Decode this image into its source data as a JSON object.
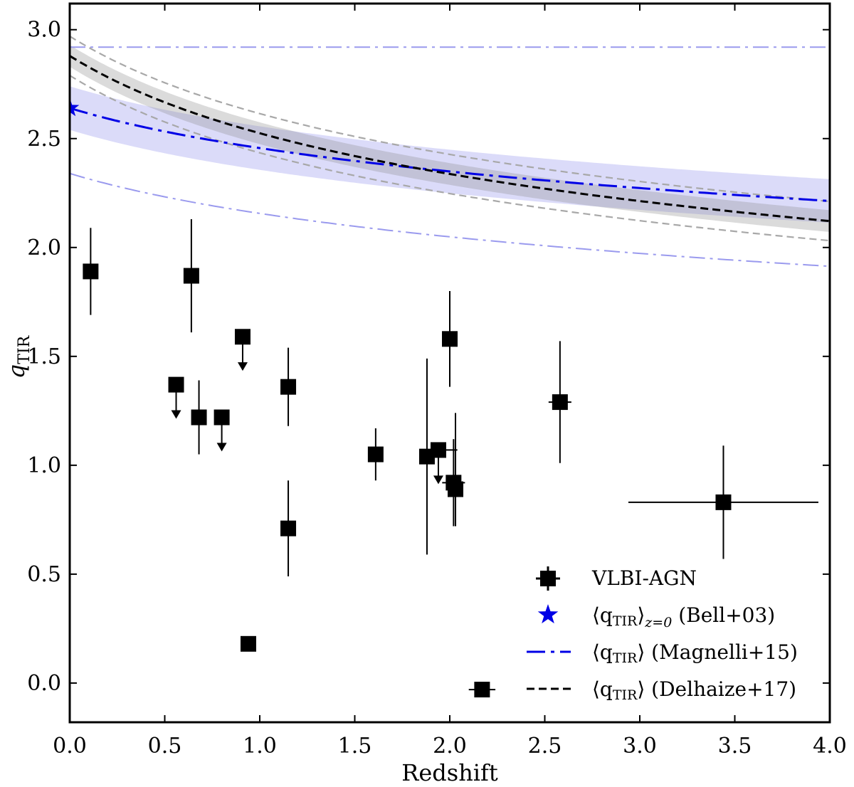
{
  "chart_data": {
    "type": "scatter",
    "xlabel": "Redshift",
    "ylabel_main": "q",
    "ylabel_sub": "TIR",
    "xlim": [
      0.0,
      4.0
    ],
    "ylim": [
      -0.18,
      3.12
    ],
    "xticks": [
      0.0,
      0.5,
      1.0,
      1.5,
      2.0,
      2.5,
      3.0,
      3.5,
      4.0
    ],
    "xtick_labels": [
      "0.0",
      "0.5",
      "1.0",
      "1.5",
      "2.0",
      "2.5",
      "3.0",
      "3.5",
      "4.0"
    ],
    "yticks": [
      0.0,
      0.5,
      1.0,
      1.5,
      2.0,
      2.5,
      3.0
    ],
    "ytick_labels": [
      "0.0",
      "0.5",
      "1.0",
      "1.5",
      "2.0",
      "2.5",
      "3.0"
    ],
    "colors": {
      "magnelli": "#0000e6",
      "magnelli_band": "#9999ee",
      "magnelli_bounds": "#9a9aee",
      "delhaize": "#000000",
      "delhaize_band": "#888888",
      "delhaize_bounds": "#a8a8a8",
      "points": "#000000"
    },
    "models": {
      "bell_z0": 2.64,
      "magnelli": {
        "q0": 2.64,
        "slope": -0.61,
        "band": 0.1,
        "upper_const": 2.92,
        "lower_offset": -0.3
      },
      "delhaize": {
        "q0": 2.88,
        "slope": -0.19,
        "band": 0.05,
        "outer_offset": 0.09
      }
    },
    "points": [
      {
        "x": 0.11,
        "y": 1.89,
        "xerr": 0.0,
        "yerr_lo": 0.2,
        "yerr_hi": 0.2,
        "upper_limit": false
      },
      {
        "x": 0.56,
        "y": 1.37,
        "xerr": 0.0,
        "yerr_lo": 0.0,
        "yerr_hi": 0.0,
        "upper_limit": true
      },
      {
        "x": 0.64,
        "y": 1.87,
        "xerr": 0.0,
        "yerr_lo": 0.26,
        "yerr_hi": 0.26,
        "upper_limit": false
      },
      {
        "x": 0.68,
        "y": 1.22,
        "xerr": 0.0,
        "yerr_lo": 0.17,
        "yerr_hi": 0.17,
        "upper_limit": false
      },
      {
        "x": 0.8,
        "y": 1.22,
        "xerr": 0.0,
        "yerr_lo": 0.0,
        "yerr_hi": 0.0,
        "upper_limit": true
      },
      {
        "x": 0.91,
        "y": 1.59,
        "xerr": 0.0,
        "yerr_lo": 0.0,
        "yerr_hi": 0.0,
        "upper_limit": true
      },
      {
        "x": 0.94,
        "y": 0.18,
        "xerr": 0.0,
        "yerr_lo": 0.0,
        "yerr_hi": 0.0,
        "upper_limit": false
      },
      {
        "x": 1.15,
        "y": 1.36,
        "xerr": 0.0,
        "yerr_lo": 0.18,
        "yerr_hi": 0.18,
        "upper_limit": false
      },
      {
        "x": 1.15,
        "y": 0.71,
        "xerr": 0.0,
        "yerr_lo": 0.22,
        "yerr_hi": 0.22,
        "upper_limit": false
      },
      {
        "x": 1.61,
        "y": 1.05,
        "xerr": 0.0,
        "yerr_lo": 0.12,
        "yerr_hi": 0.12,
        "upper_limit": false
      },
      {
        "x": 1.88,
        "y": 1.04,
        "xerr": 0.0,
        "yerr_lo": 0.45,
        "yerr_hi": 0.45,
        "upper_limit": false
      },
      {
        "x": 1.94,
        "y": 1.07,
        "xerr": 0.1,
        "yerr_lo": 0.0,
        "yerr_hi": 0.0,
        "upper_limit": true
      },
      {
        "x": 2.0,
        "y": 1.58,
        "xerr": 0.0,
        "yerr_lo": 0.22,
        "yerr_hi": 0.22,
        "upper_limit": false
      },
      {
        "x": 2.02,
        "y": 0.92,
        "xerr": 0.06,
        "yerr_lo": 0.2,
        "yerr_hi": 0.2,
        "upper_limit": false
      },
      {
        "x": 2.03,
        "y": 0.89,
        "xerr": 0.0,
        "yerr_lo": 0.17,
        "yerr_hi": 0.35,
        "upper_limit": false
      },
      {
        "x": 2.58,
        "y": 1.29,
        "xerr": 0.06,
        "yerr_lo": 0.28,
        "yerr_hi": 0.28,
        "upper_limit": false
      },
      {
        "x": 3.44,
        "y": 0.83,
        "xerr": 0.5,
        "yerr_lo": 0.26,
        "yerr_hi": 0.26,
        "upper_limit": false
      },
      {
        "x": 2.17,
        "y": -0.03,
        "xerr": 0.07,
        "yerr_lo": 0.0,
        "yerr_hi": 0.0,
        "upper_limit": false
      }
    ],
    "legend": {
      "position": "lower-right",
      "entries": [
        {
          "marker": "square",
          "label": "VLBI-AGN"
        },
        {
          "marker": "star",
          "label_math": "⟨q",
          "label_sub": "TIR",
          "label_sub2": "⟩",
          "label_sub3": "z=0",
          "label_rest": " (Bell+03)"
        },
        {
          "marker": "dashdot",
          "label_math": "⟨q",
          "label_sub": "TIR",
          "label_rest": "⟩ (Magnelli+15)"
        },
        {
          "marker": "dashed",
          "label_math": "⟨q",
          "label_sub": "TIR",
          "label_rest": "⟩ (Delhaize+17)"
        }
      ]
    }
  }
}
